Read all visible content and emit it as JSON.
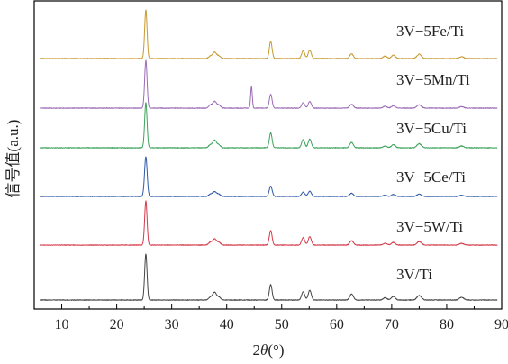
{
  "chart_data": {
    "type": "line",
    "title": "",
    "xlabel_prefix": "2",
    "xlabel_theta": "θ",
    "xlabel_suffix": "(°)",
    "ylabel": "信号值(a.u.)",
    "xlim": [
      5,
      90
    ],
    "xticks": [
      "10",
      "20",
      "30",
      "40",
      "50",
      "60",
      "70",
      "80",
      "90"
    ],
    "yticks_shown": false,
    "baseline_noise": 0.006,
    "series": [
      {
        "name": "3V−5Fe/Ti",
        "color": "#c8992e",
        "peaks": [
          [
            25.3,
            1.0,
            0.22
          ],
          [
            37.0,
            0.05,
            0.3
          ],
          [
            37.8,
            0.13,
            0.35
          ],
          [
            38.6,
            0.05,
            0.3
          ],
          [
            48.0,
            0.35,
            0.25
          ],
          [
            53.9,
            0.16,
            0.28
          ],
          [
            55.1,
            0.17,
            0.28
          ],
          [
            62.7,
            0.1,
            0.32
          ],
          [
            68.8,
            0.05,
            0.35
          ],
          [
            70.3,
            0.07,
            0.35
          ],
          [
            75.0,
            0.09,
            0.4
          ],
          [
            82.7,
            0.04,
            0.4
          ]
        ]
      },
      {
        "name": "3V−5Mn/Ti",
        "color": "#9b6bb5",
        "peaks": [
          [
            25.3,
            1.0,
            0.22
          ],
          [
            37.0,
            0.06,
            0.3
          ],
          [
            37.8,
            0.14,
            0.35
          ],
          [
            38.6,
            0.06,
            0.3
          ],
          [
            44.5,
            0.45,
            0.15
          ],
          [
            48.0,
            0.29,
            0.25
          ],
          [
            53.9,
            0.12,
            0.28
          ],
          [
            55.1,
            0.14,
            0.28
          ],
          [
            62.7,
            0.08,
            0.32
          ],
          [
            68.8,
            0.04,
            0.35
          ],
          [
            70.3,
            0.05,
            0.35
          ],
          [
            75.0,
            0.07,
            0.4
          ],
          [
            82.7,
            0.03,
            0.4
          ]
        ]
      },
      {
        "name": "3V−5Cu/Ti",
        "color": "#3aa25a",
        "peaks": [
          [
            25.3,
            1.0,
            0.22
          ],
          [
            37.0,
            0.06,
            0.3
          ],
          [
            37.8,
            0.17,
            0.35
          ],
          [
            38.6,
            0.06,
            0.3
          ],
          [
            48.0,
            0.33,
            0.25
          ],
          [
            53.9,
            0.18,
            0.28
          ],
          [
            55.1,
            0.19,
            0.28
          ],
          [
            62.7,
            0.12,
            0.32
          ],
          [
            68.8,
            0.04,
            0.35
          ],
          [
            70.3,
            0.07,
            0.35
          ],
          [
            75.0,
            0.09,
            0.4
          ],
          [
            82.7,
            0.04,
            0.4
          ]
        ]
      },
      {
        "name": "3V−5Ce/Ti",
        "color": "#2d5aa8",
        "peaks": [
          [
            25.3,
            1.0,
            0.24
          ],
          [
            37.0,
            0.05,
            0.3
          ],
          [
            37.8,
            0.12,
            0.38
          ],
          [
            38.6,
            0.05,
            0.3
          ],
          [
            48.0,
            0.26,
            0.27
          ],
          [
            53.9,
            0.11,
            0.3
          ],
          [
            55.1,
            0.13,
            0.3
          ],
          [
            62.7,
            0.08,
            0.34
          ],
          [
            68.8,
            0.03,
            0.35
          ],
          [
            70.3,
            0.05,
            0.35
          ],
          [
            75.0,
            0.06,
            0.4
          ],
          [
            82.7,
            0.03,
            0.4
          ]
        ]
      },
      {
        "name": "3V−5W/Ti",
        "color": "#d43a4a",
        "peaks": [
          [
            25.3,
            1.0,
            0.22
          ],
          [
            37.0,
            0.06,
            0.3
          ],
          [
            37.8,
            0.14,
            0.35
          ],
          [
            38.6,
            0.06,
            0.3
          ],
          [
            48.0,
            0.33,
            0.25
          ],
          [
            53.9,
            0.17,
            0.28
          ],
          [
            55.1,
            0.19,
            0.28
          ],
          [
            62.7,
            0.1,
            0.32
          ],
          [
            68.8,
            0.04,
            0.35
          ],
          [
            70.3,
            0.06,
            0.35
          ],
          [
            75.0,
            0.08,
            0.4
          ],
          [
            82.7,
            0.04,
            0.4
          ]
        ]
      },
      {
        "name": "3V/Ti",
        "color": "#454545",
        "peaks": [
          [
            25.3,
            1.0,
            0.22
          ],
          [
            37.0,
            0.06,
            0.3
          ],
          [
            37.8,
            0.17,
            0.35
          ],
          [
            38.6,
            0.06,
            0.3
          ],
          [
            48.0,
            0.34,
            0.25
          ],
          [
            53.9,
            0.18,
            0.28
          ],
          [
            55.1,
            0.21,
            0.28
          ],
          [
            62.7,
            0.13,
            0.32
          ],
          [
            68.8,
            0.05,
            0.35
          ],
          [
            70.3,
            0.08,
            0.35
          ],
          [
            75.0,
            0.1,
            0.4
          ],
          [
            82.7,
            0.06,
            0.4
          ]
        ]
      }
    ]
  }
}
